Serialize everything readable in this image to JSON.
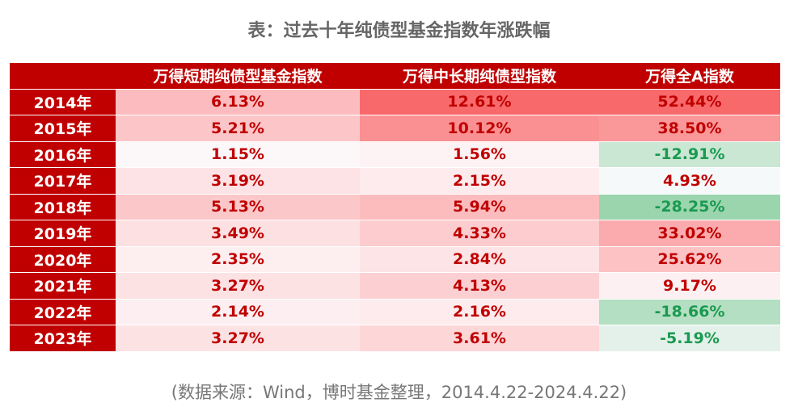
{
  "title": "表：过去十年纯债型基金指数年涨跌幅",
  "table": {
    "header": [
      "",
      "万得短期纯债型基金指数",
      "万得中长期纯债型指数",
      "万得全A指数"
    ],
    "rows": [
      [
        "2014年",
        "6.13%",
        "12.61%",
        "52.44%"
      ],
      [
        "2015年",
        "5.21%",
        "10.12%",
        "38.50%"
      ],
      [
        "2016年",
        "1.15%",
        "1.56%",
        "-12.91%"
      ],
      [
        "2017年",
        "3.19%",
        "2.15%",
        "4.93%"
      ],
      [
        "2018年",
        "5.13%",
        "5.94%",
        "-28.25%"
      ],
      [
        "2019年",
        "3.49%",
        "4.33%",
        "33.02%"
      ],
      [
        "2020年",
        "2.35%",
        "2.84%",
        "25.62%"
      ],
      [
        "2021年",
        "3.27%",
        "4.13%",
        "9.17%"
      ],
      [
        "2022年",
        "2.14%",
        "2.16%",
        "-18.66%"
      ],
      [
        "2023年",
        "3.27%",
        "3.61%",
        "-5.19%"
      ]
    ],
    "cell_colors": [
      [
        "#fcbcbf",
        "#f8696b",
        "#f8696b"
      ],
      [
        "#fcc6c8",
        "#fa9092",
        "#fa9799"
      ],
      [
        "#fcf8fa",
        "#fdf3f5",
        "#c9e7d3"
      ],
      [
        "#fde3e5",
        "#fdebed",
        "#f5f9fa"
      ],
      [
        "#fcc7c9",
        "#fcbcbe",
        "#9bd5ae"
      ],
      [
        "#fde0e2",
        "#fcccce",
        "#fbabad"
      ],
      [
        "#fdeef0",
        "#fde4e6",
        "#fcc2c4"
      ],
      [
        "#fde2e4",
        "#fcd0d2",
        "#fcf0f2"
      ],
      [
        "#fdeff1",
        "#fdebed",
        "#b5dfc2"
      ],
      [
        "#fde2e4",
        "#fdd6d8",
        "#e3f1ea"
      ]
    ]
  },
  "footnote": "(数据来源：Wind，博时基金整理，2014.4.22-2024.4.22)"
}
